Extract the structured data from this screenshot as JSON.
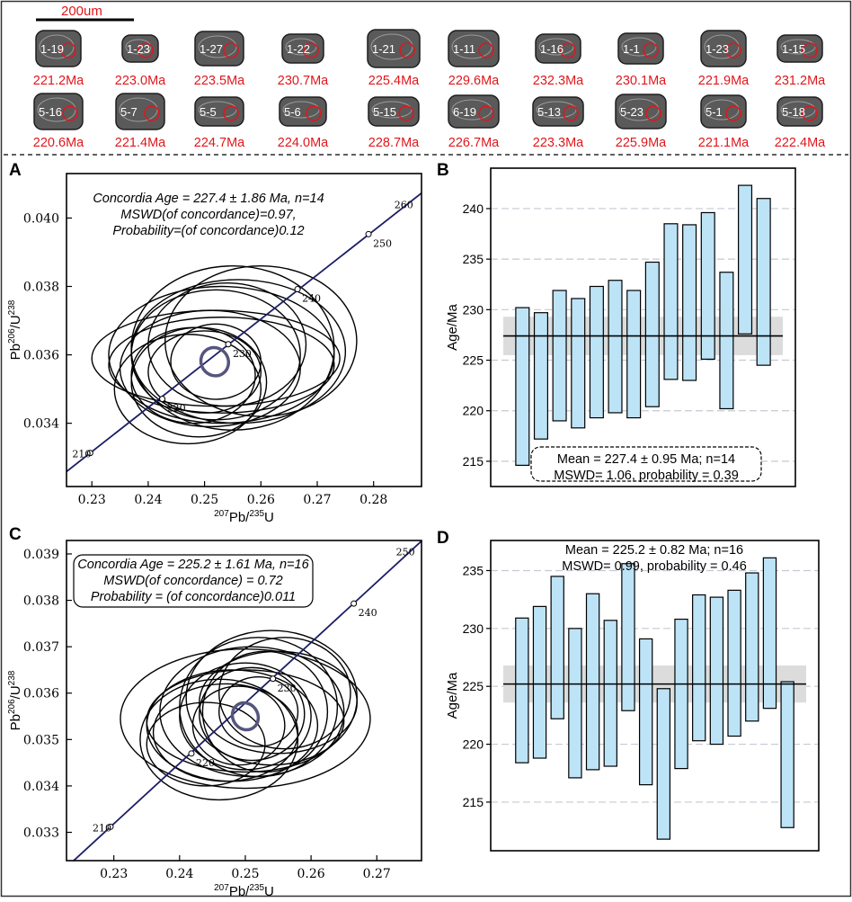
{
  "scale_bar_label": "200um",
  "zircons": [
    {
      "spot": "1-19",
      "age": "221.2Ma"
    },
    {
      "spot": "1-23",
      "age": "223.0Ma"
    },
    {
      "spot": "1-27",
      "age": "223.5Ma"
    },
    {
      "spot": "1-22",
      "age": "230.7Ma"
    },
    {
      "spot": "1-21",
      "age": "225.4Ma"
    },
    {
      "spot": "1-11",
      "age": "229.6Ma"
    },
    {
      "spot": "1-16",
      "age": "232.3Ma"
    },
    {
      "spot": "1-1",
      "age": "230.1Ma"
    },
    {
      "spot": "1-23",
      "age": "221.9Ma"
    },
    {
      "spot": "1-15",
      "age": "231.2Ma"
    },
    {
      "spot": "5-16",
      "age": "220.6Ma"
    },
    {
      "spot": "5-7",
      "age": "221.4Ma"
    },
    {
      "spot": "5-5",
      "age": "224.7Ma"
    },
    {
      "spot": "5-6",
      "age": "224.0Ma"
    },
    {
      "spot": "5-15",
      "age": "228.7Ma"
    },
    {
      "spot": "6-19",
      "age": "226.7Ma"
    },
    {
      "spot": "5-13",
      "age": "223.3Ma"
    },
    {
      "spot": "5-23",
      "age": "225.9Ma"
    },
    {
      "spot": "5-1",
      "age": "221.1Ma"
    },
    {
      "spot": "5-18",
      "age": "222.4Ma"
    }
  ],
  "chart_data": [
    {
      "panel": "A",
      "type": "scatter",
      "xlabel_sup": "207",
      "xlabel_base1": "Pb/",
      "xlabel_sup2": "235",
      "xlabel_base2": "U",
      "ylabel": "Pb206/U238",
      "xlim": [
        0.2255,
        0.2885
      ],
      "ylim": [
        0.03215,
        0.0413
      ],
      "xticks": [
        0.23,
        0.24,
        0.25,
        0.26,
        0.27,
        0.28
      ],
      "yticks": [
        0.034,
        0.036,
        0.038,
        0.04
      ],
      "xtick_labels": [
        "0.23",
        "0.24",
        "0.25",
        "0.26",
        "0.27",
        "0.28"
      ],
      "ytick_labels": [
        "0.034",
        "0.036",
        "0.038",
        "0.040"
      ],
      "concordia_points": [
        {
          "age": 210,
          "x": 0.2297,
          "y": 0.03313
        },
        {
          "age": 220,
          "x": 0.2425,
          "y": 0.03471
        },
        {
          "age": 230,
          "x": 0.2542,
          "y": 0.03631
        },
        {
          "age": 240,
          "x": 0.2665,
          "y": 0.03792
        },
        {
          "age": 250,
          "x": 0.2791,
          "y": 0.03953
        },
        {
          "age": 260,
          "x": 0.2875,
          "y": 0.0406
        }
      ],
      "concordia_labels": [
        "210",
        "220",
        "230",
        "240",
        "250",
        "260"
      ],
      "annotation_lines": [
        "Concordia Age = 227.4 ± 1.86 Ma, n=14",
        "MSWD(of concordance)=0.97,",
        "Probability=(of concordance)0.12"
      ],
      "concordia_ellipse": {
        "cx": 0.2518,
        "cy": 0.0358,
        "rx": 0.0024,
        "ry": 0.00042
      },
      "error_ellipses": [
        {
          "cx": 0.252,
          "cy": 0.0359,
          "rx": 0.022,
          "ry": 0.0014
        },
        {
          "cx": 0.253,
          "cy": 0.036,
          "rx": 0.02,
          "ry": 0.002
        },
        {
          "cx": 0.255,
          "cy": 0.0362,
          "rx": 0.018,
          "ry": 0.0024
        },
        {
          "cx": 0.251,
          "cy": 0.0356,
          "rx": 0.016,
          "ry": 0.0017
        },
        {
          "cx": 0.249,
          "cy": 0.0352,
          "rx": 0.012,
          "ry": 0.0016
        },
        {
          "cx": 0.256,
          "cy": 0.0361,
          "rx": 0.019,
          "ry": 0.0021
        },
        {
          "cx": 0.252,
          "cy": 0.036,
          "rx": 0.015,
          "ry": 0.0019
        },
        {
          "cx": 0.25,
          "cy": 0.0355,
          "rx": 0.01,
          "ry": 0.0012
        },
        {
          "cx": 0.254,
          "cy": 0.0363,
          "rx": 0.014,
          "ry": 0.0018
        },
        {
          "cx": 0.247,
          "cy": 0.035,
          "rx": 0.013,
          "ry": 0.0016
        },
        {
          "cx": 0.252,
          "cy": 0.0358,
          "rx": 0.008,
          "ry": 0.0011
        },
        {
          "cx": 0.26,
          "cy": 0.0364,
          "rx": 0.017,
          "ry": 0.0022
        },
        {
          "cx": 0.253,
          "cy": 0.0357,
          "rx": 0.02,
          "ry": 0.0014
        },
        {
          "cx": 0.248,
          "cy": 0.0354,
          "rx": 0.011,
          "ry": 0.0014
        }
      ]
    },
    {
      "panel": "B",
      "type": "bar",
      "ylabel": "Age/Ma",
      "ylim": [
        212.5,
        244.0
      ],
      "yticks": [
        215,
        220,
        225,
        230,
        235,
        240
      ],
      "ytick_labels": [
        "215",
        "220",
        "225",
        "230",
        "235",
        "240"
      ],
      "mean": 227.4,
      "mean_band": [
        225.5,
        229.3
      ],
      "bars": [
        [
          214.6,
          230.2
        ],
        [
          217.2,
          229.7
        ],
        [
          219.0,
          231.9
        ],
        [
          218.3,
          231.1
        ],
        [
          219.3,
          232.3
        ],
        [
          219.8,
          232.9
        ],
        [
          219.3,
          231.9
        ],
        [
          220.4,
          234.7
        ],
        [
          223.1,
          238.5
        ],
        [
          223.0,
          238.4
        ],
        [
          225.1,
          239.6
        ],
        [
          220.2,
          233.7
        ],
        [
          227.6,
          242.3
        ],
        [
          224.5,
          241.0
        ]
      ],
      "legend_lines": [
        "Mean = 227.4 ± 0.95 Ma; n=14",
        "MSWD= 1.06, probability = 0.39"
      ]
    },
    {
      "panel": "C",
      "type": "scatter",
      "xlabel_sup": "207",
      "xlabel_base1": "Pb/",
      "xlabel_sup2": "235",
      "xlabel_base2": "U",
      "ylabel": "Pb206/U238",
      "xlim": [
        0.2228,
        0.2768
      ],
      "ylim": [
        0.03239,
        0.03929
      ],
      "xticks": [
        0.23,
        0.24,
        0.25,
        0.26,
        0.27
      ],
      "yticks": [
        0.033,
        0.034,
        0.035,
        0.036,
        0.037,
        0.038,
        0.039
      ],
      "xtick_labels": [
        "0.23",
        "0.24",
        "0.25",
        "0.26",
        "0.27"
      ],
      "ytick_labels": [
        "0.033",
        "0.034",
        "0.035",
        "0.036",
        "0.037",
        "0.038",
        "0.039"
      ],
      "concordia_points": [
        {
          "age": 210,
          "x": 0.2295,
          "y": 0.03312
        },
        {
          "age": 220,
          "x": 0.2418,
          "y": 0.0347
        },
        {
          "age": 230,
          "x": 0.2542,
          "y": 0.03631
        },
        {
          "age": 240,
          "x": 0.2665,
          "y": 0.03793
        },
        {
          "age": 250,
          "x": 0.2762,
          "y": 0.0392
        }
      ],
      "concordia_labels": [
        "210",
        "220",
        "230",
        "240",
        "250"
      ],
      "annotation_lines": [
        "Concordia Age = 225.2 ± 1.61 Ma, n=16",
        "MSWD(of concordance) = 0.72",
        "Probability = (of concordance)0.011"
      ],
      "concordia_ellipse": {
        "cx": 0.25,
        "cy": 0.0355,
        "rx": 0.0019,
        "ry": 0.0003
      },
      "error_ellipses": [
        {
          "cx": 0.25,
          "cy": 0.03545,
          "rx": 0.019,
          "ry": 0.0015
        },
        {
          "cx": 0.251,
          "cy": 0.0356,
          "rx": 0.014,
          "ry": 0.0014
        },
        {
          "cx": 0.248,
          "cy": 0.0353,
          "rx": 0.013,
          "ry": 0.0012
        },
        {
          "cx": 0.252,
          "cy": 0.0357,
          "rx": 0.012,
          "ry": 0.0015
        },
        {
          "cx": 0.25,
          "cy": 0.0355,
          "rx": 0.01,
          "ry": 0.00115
        },
        {
          "cx": 0.247,
          "cy": 0.03515,
          "rx": 0.011,
          "ry": 0.00105
        },
        {
          "cx": 0.255,
          "cy": 0.0358,
          "rx": 0.012,
          "ry": 0.0011
        },
        {
          "cx": 0.251,
          "cy": 0.03555,
          "rx": 0.008,
          "ry": 0.001
        },
        {
          "cx": 0.244,
          "cy": 0.0349,
          "rx": 0.009,
          "ry": 0.0009
        },
        {
          "cx": 0.253,
          "cy": 0.0356,
          "rx": 0.0095,
          "ry": 0.0013
        },
        {
          "cx": 0.249,
          "cy": 0.0353,
          "rx": 0.007,
          "ry": 0.00085
        },
        {
          "cx": 0.256,
          "cy": 0.036,
          "rx": 0.01,
          "ry": 0.0012
        },
        {
          "cx": 0.25,
          "cy": 0.0354,
          "rx": 0.015,
          "ry": 0.0011
        },
        {
          "cx": 0.254,
          "cy": 0.0359,
          "rx": 0.013,
          "ry": 0.00145
        },
        {
          "cx": 0.246,
          "cy": 0.035,
          "rx": 0.012,
          "ry": 0.0013
        },
        {
          "cx": 0.252,
          "cy": 0.0356,
          "rx": 0.006,
          "ry": 0.00075
        }
      ]
    },
    {
      "panel": "D",
      "type": "bar",
      "ylabel": "Age/Ma",
      "ylim": [
        210.8,
        237.6
      ],
      "yticks": [
        215,
        220,
        225,
        230,
        235
      ],
      "ytick_labels": [
        "215",
        "220",
        "225",
        "230",
        "235"
      ],
      "mean": 225.2,
      "mean_band": [
        223.6,
        226.8
      ],
      "bars": [
        [
          218.4,
          230.9
        ],
        [
          218.8,
          231.9
        ],
        [
          222.2,
          234.5
        ],
        [
          217.1,
          230.0
        ],
        [
          217.8,
          233.0
        ],
        [
          218.1,
          230.7
        ],
        [
          222.9,
          235.6
        ],
        [
          216.5,
          229.1
        ],
        [
          211.8,
          224.8
        ],
        [
          217.9,
          230.8
        ],
        [
          220.3,
          232.9
        ],
        [
          220.0,
          232.7
        ],
        [
          220.7,
          233.3
        ],
        [
          222.0,
          234.8
        ],
        [
          223.1,
          236.1
        ],
        [
          212.8,
          225.4
        ]
      ],
      "legend_lines": [
        "Mean = 225.2 ± 0.82 Ma; n=16",
        "MSWD= 0.99, probability = 0.46"
      ]
    }
  ]
}
